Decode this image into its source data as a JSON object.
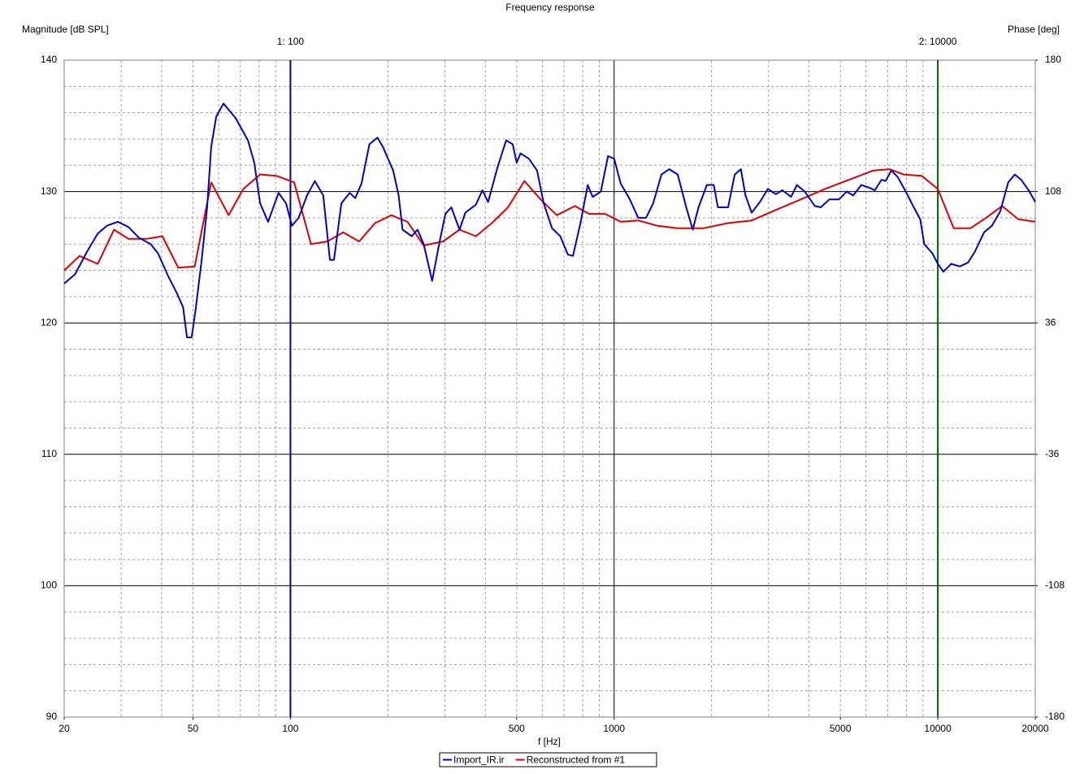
{
  "chart_data": {
    "type": "line",
    "title": "Frequency response",
    "y_label": "Magnitude [dB SPL]",
    "y2_label": "Phase [deg]",
    "x_label": "f [Hz]",
    "xscale": "log",
    "xlim": [
      20,
      20000
    ],
    "xticks": [
      20,
      50,
      100,
      500,
      1000,
      5000,
      10000,
      20000
    ],
    "ylim": [
      90,
      140
    ],
    "yticks": [
      90,
      100,
      110,
      120,
      130,
      140
    ],
    "y2lim": [
      -180,
      180
    ],
    "y2ticks": [
      -180,
      -108,
      -36,
      36,
      108,
      180
    ],
    "grid": true,
    "legend": "bottom",
    "markers": [
      {
        "label": "1:  100",
        "x": 100,
        "color": "#0000a0"
      },
      {
        "label": "2:  10000",
        "x": 10000,
        "color": "#006400"
      }
    ],
    "series": [
      {
        "name": "Import_IR.ir",
        "color": "#0000c8",
        "x": [
          20,
          21.6,
          23.5,
          25.4,
          27.1,
          29.3,
          31.6,
          34,
          37,
          39,
          42,
          44.3,
          46.6,
          47.9,
          49.5,
          51,
          53.2,
          55.3,
          56.9,
          59,
          62.1,
          67.7,
          73.9,
          77.3,
          80.6,
          85.3,
          91.9,
          96.9,
          101.1,
          106,
          112.5,
          119,
          126.3,
          132.4,
          136.3,
          143.7,
          152.4,
          158.6,
          165.7,
          175.4,
          185.7,
          193,
          207.6,
          216,
          222,
          237,
          247,
          258,
          274,
          288,
          301,
          314,
          333,
          347,
          374,
          392,
          408,
          437,
          464,
          486,
          500,
          514,
          545,
          578,
          606,
          643,
          682,
          720,
          746,
          787,
          829,
          858,
          910,
          957,
          1000,
          1048,
          1118,
          1187,
          1255,
          1320,
          1400,
          1480,
          1572,
          1670,
          1749,
          1823,
          1934,
          2032,
          2091,
          2250,
          2358,
          2463,
          2546,
          2660,
          2820,
          2985,
          3160,
          3310,
          3520,
          3670,
          3880,
          4170,
          4350,
          4620,
          4950,
          5230,
          5480,
          5800,
          6140,
          6390,
          6700,
          6900,
          7180,
          7520,
          7960,
          8430,
          8820,
          9080,
          9620,
          10000,
          10400,
          11000,
          11700,
          12400,
          13000,
          13900,
          14700,
          15600,
          16500,
          17300,
          18100,
          19200,
          20000
        ],
        "values": [
          123.0,
          123.7,
          125.4,
          126.8,
          127.4,
          127.7,
          127.3,
          126.5,
          126.0,
          125.3,
          123.5,
          122.4,
          121.2,
          118.9,
          118.9,
          121.1,
          124.8,
          128.8,
          133.4,
          135.7,
          136.7,
          135.6,
          133.9,
          132.2,
          129.1,
          127.7,
          129.9,
          129.1,
          127.4,
          128.0,
          129.7,
          130.8,
          129.7,
          124.8,
          124.8,
          129.1,
          129.9,
          129.5,
          130.6,
          133.6,
          134.1,
          133.4,
          131.6,
          129.7,
          127.1,
          126.6,
          127.1,
          126.0,
          123.2,
          126.0,
          128.3,
          128.8,
          127.1,
          128.4,
          129.0,
          130.1,
          129.2,
          131.9,
          133.9,
          133.6,
          132.2,
          132.9,
          132.5,
          131.6,
          129.1,
          127.2,
          126.6,
          125.2,
          125.1,
          127.6,
          130.5,
          129.6,
          130.0,
          132.7,
          132.5,
          130.6,
          129.4,
          128.0,
          128.0,
          129.1,
          131.3,
          131.7,
          131.3,
          128.8,
          127.1,
          128.8,
          130.5,
          130.5,
          128.8,
          128.8,
          131.3,
          131.7,
          129.7,
          128.4,
          129.2,
          130.2,
          129.8,
          130.1,
          129.6,
          130.5,
          130.0,
          128.9,
          128.8,
          129.4,
          129.4,
          130.0,
          129.7,
          130.5,
          130.3,
          130.1,
          130.9,
          130.8,
          131.6,
          131.1,
          130.0,
          128.8,
          127.9,
          126.0,
          125.3,
          124.5,
          123.9,
          124.5,
          124.3,
          124.6,
          125.4,
          126.9,
          127.4,
          128.5,
          130.7,
          131.3,
          130.9,
          130.0,
          129.2
        ]
      },
      {
        "name": "Reconstructed from #1",
        "color": "#dc0000",
        "x": [
          20,
          22.3,
          25.4,
          28.5,
          31.6,
          35.9,
          40.2,
          45,
          50.6,
          56.9,
          64.4,
          71.5,
          80.6,
          90.4,
          102.7,
          115.7,
          129.9,
          145.6,
          163,
          182.6,
          205,
          230,
          258,
          296,
          333,
          374,
          419,
          470,
          528,
          593,
          665,
          756,
          837,
          939,
          1048,
          1187,
          1360,
          1572,
          1880,
          2250,
          2660,
          3160,
          3770,
          4480,
          5320,
          6320,
          7100,
          7830,
          8920,
          10000,
          11200,
          12600,
          14100,
          15800,
          17700,
          20000
        ],
        "values": [
          124.0,
          125.1,
          124.5,
          127.1,
          126.4,
          126.4,
          126.6,
          124.2,
          124.3,
          130.7,
          128.2,
          130.2,
          131.3,
          131.2,
          130.7,
          126.0,
          126.2,
          126.9,
          126.2,
          127.6,
          128.2,
          127.7,
          125.9,
          126.2,
          127.1,
          126.6,
          127.6,
          128.8,
          130.8,
          129.4,
          128.2,
          128.9,
          128.3,
          128.3,
          127.7,
          127.8,
          127.4,
          127.2,
          127.2,
          127.6,
          127.8,
          128.6,
          129.4,
          130.2,
          130.9,
          131.6,
          131.7,
          131.3,
          131.2,
          130.2,
          127.2,
          127.2,
          128.0,
          128.9,
          127.9,
          127.7
        ]
      }
    ]
  }
}
